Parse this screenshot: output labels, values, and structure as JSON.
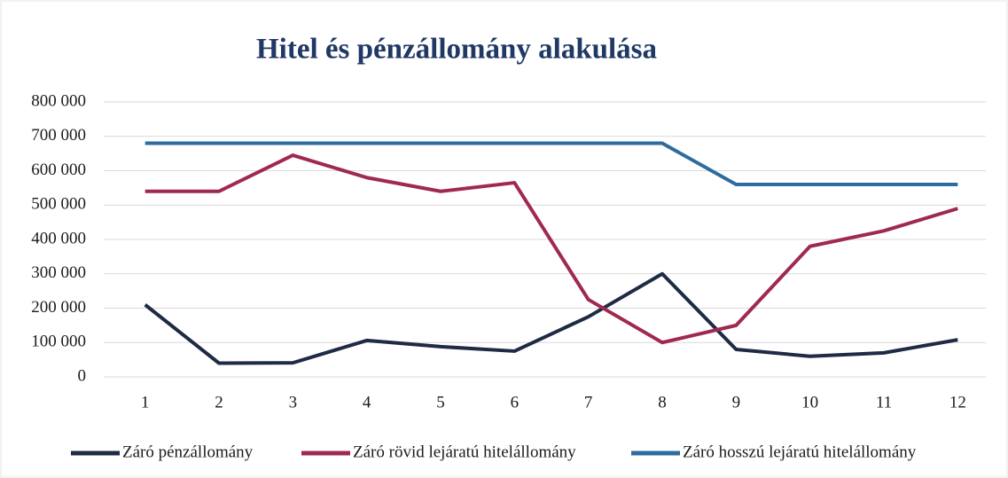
{
  "chart_data": {
    "type": "line",
    "title": "Hitel és pénzállomány  alakulása",
    "categories": [
      "1",
      "2",
      "3",
      "4",
      "5",
      "6",
      "7",
      "8",
      "9",
      "10",
      "11",
      "12"
    ],
    "series": [
      {
        "name": "Záró pénzállomány",
        "color": "#1f2a44",
        "values": [
          210000,
          40000,
          41000,
          106000,
          88000,
          75000,
          175000,
          300000,
          80000,
          60000,
          70000,
          108000
        ]
      },
      {
        "name": "Záró rövid lejáratú hitelállomány",
        "color": "#a0294f",
        "values": [
          540000,
          540000,
          645000,
          580000,
          540000,
          565000,
          225000,
          100000,
          150000,
          380000,
          425000,
          490000
        ]
      },
      {
        "name": "Záró hosszú lejáratú hitelállomány",
        "color": "#2e6b9e",
        "values": [
          680000,
          680000,
          680000,
          680000,
          680000,
          680000,
          680000,
          680000,
          560000,
          560000,
          560000,
          560000
        ]
      }
    ],
    "ylim": [
      0,
      800000
    ],
    "yticks": [
      0,
      {
        "value": 100000,
        "label": "100 000"
      },
      {
        "value": 200000,
        "label": "200 000"
      },
      {
        "value": 300000,
        "label": "300 000"
      },
      {
        "value": 400000,
        "label": "400 000"
      },
      {
        "value": 500000,
        "label": "500 000"
      },
      {
        "value": 600000,
        "label": "600 000"
      },
      {
        "value": 700000,
        "label": "700 000"
      },
      {
        "value": 800000,
        "label": "800 000"
      }
    ],
    "grid": true,
    "legend": "bottom"
  }
}
